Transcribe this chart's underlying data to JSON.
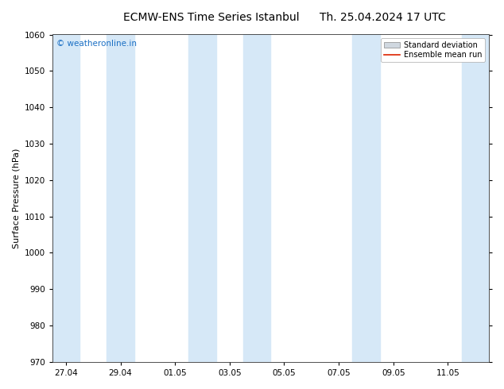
{
  "title_left": "ECMW-ENS Time Series Istanbul",
  "title_right": "Th. 25.04.2024 17 UTC",
  "ylabel": "Surface Pressure (hPa)",
  "ylim": [
    970,
    1060
  ],
  "yticks": [
    970,
    980,
    990,
    1000,
    1010,
    1020,
    1030,
    1040,
    1050,
    1060
  ],
  "bg_color": "#ffffff",
  "plot_bg_color": "#ffffff",
  "shading_color": "#d6e8f7",
  "watermark_text": "© weatheronline.in",
  "watermark_color": "#1a6fc4",
  "legend_std_label": "Standard deviation",
  "legend_ens_label": "Ensemble mean run",
  "legend_std_color": "#d0d8e0",
  "legend_ens_color": "#dd2200",
  "xtick_labels": [
    "27.04",
    "29.04",
    "01.05",
    "03.05",
    "05.05",
    "07.05",
    "09.05",
    "11.05"
  ],
  "xtick_positions": [
    0,
    2,
    4,
    6,
    8,
    10,
    12,
    14
  ],
  "x_min": -0.5,
  "x_max": 15.5,
  "shaded_bands": [
    {
      "start": -0.5,
      "end": 0.5
    },
    {
      "start": 1.5,
      "end": 2.5
    },
    {
      "start": 4.5,
      "end": 5.5
    },
    {
      "start": 6.5,
      "end": 7.5
    },
    {
      "start": 10.5,
      "end": 11.5
    },
    {
      "start": 14.5,
      "end": 15.5
    }
  ]
}
